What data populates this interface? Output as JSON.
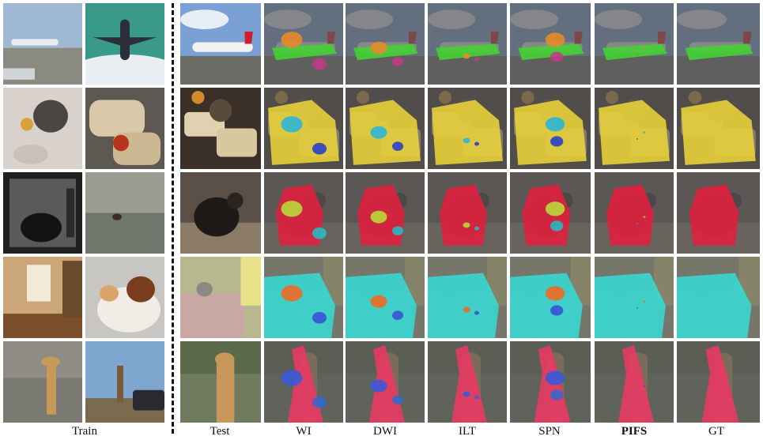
{
  "figure": {
    "labels": {
      "train": "Train",
      "test": "Test",
      "wi": "WI",
      "dwi": "DWI",
      "ilt": "ILT",
      "spn": "SPN",
      "pifs": "PIFS",
      "gt": "GT"
    },
    "rows": [
      {
        "name": "airplane",
        "train_scenes": [
          "airport-apron",
          "airplane-sky"
        ],
        "class": "aeroplane",
        "color": "#44d134"
      },
      {
        "name": "sandwich",
        "train_scenes": [
          "cat-table-food",
          "grilled-sandwich"
        ],
        "class": "sandwich",
        "color": "#e8d03a"
      },
      {
        "name": "bear",
        "train_scenes": [
          "bear-enclosure",
          "bear-river"
        ],
        "class": "bear",
        "color": "#e0203e"
      },
      {
        "name": "couch-dog",
        "train_scenes": [
          "living-room",
          "cat-dog"
        ],
        "class": "sofa",
        "color": "#38d8d2"
      },
      {
        "name": "giraffe",
        "train_scenes": [
          "giraffe-zoo",
          "giraffe-car"
        ],
        "class": "giraffe",
        "color": "#e83a62"
      }
    ],
    "colors": {
      "divider": "#111111",
      "background": "#ffffff"
    }
  }
}
